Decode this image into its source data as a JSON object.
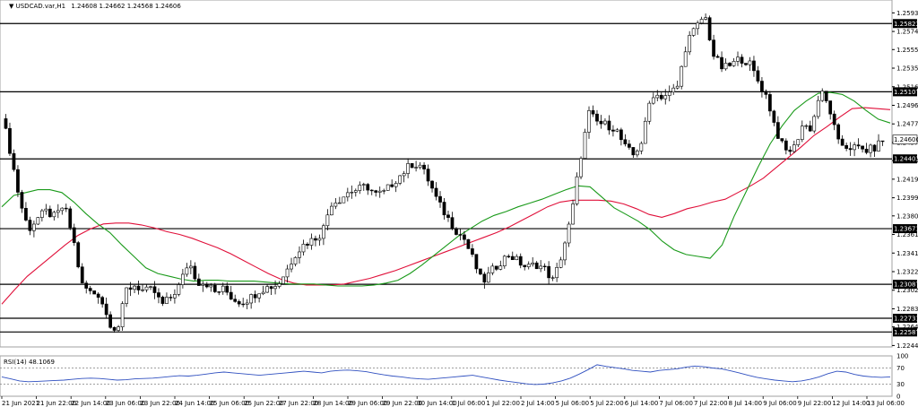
{
  "chart_header": {
    "symbol_timeframe": "USDCAD.var,H1",
    "ohlc": "1.24608 1.24662 1.24568 1.24606",
    "rsi_label": "RSI(14) 48.1069"
  },
  "colors": {
    "background": "#ffffff",
    "candle": "#000000",
    "ma_fast": "#1a9a1a",
    "ma_slow": "#e0103a",
    "rsi_line": "#3050c0",
    "level_line": "#000000"
  },
  "chart_data": [
    {
      "type": "candlestick",
      "title": "",
      "ylim": [
        1.2243,
        1.2607
      ],
      "y_ticks": [
        "1.25935",
        "1.25740",
        "1.25550",
        "1.25355",
        "1.25160",
        "1.24965",
        "1.24770",
        "1.24575",
        "1.24385",
        "1.24190",
        "1.23995",
        "1.23805",
        "1.23610",
        "1.23415",
        "1.23220",
        "1.23025",
        "1.22830",
        "1.22640",
        "1.22445"
      ],
      "x_ticks": [
        "21 Jun 2021",
        "21 Jun 22:00",
        "22 Jun 14:00",
        "23 Jun 06:00",
        "23 Jun 22:00",
        "24 Jun 14:00",
        "25 Jun 06:00",
        "25 Jun 22:00",
        "27 Jun 22:00",
        "28 Jun 14:00",
        "29 Jun 06:00",
        "29 Jun 22:00",
        "30 Jun 14:00",
        "1 Jul 06:00",
        "1 Jul 22:00",
        "2 Jul 14:00",
        "5 Jul 06:00",
        "5 Jul 22:00",
        "6 Jul 14:00",
        "7 Jul 06:00",
        "7 Jul 22:00",
        "8 Jul 14:00",
        "9 Jul 06:00",
        "9 Jul 22:00",
        "12 Jul 14:00",
        "13 Jul 06:00"
      ],
      "price_path": [
        1.2487,
        1.2446,
        1.2397,
        1.2366,
        1.2378,
        1.2385,
        1.2379,
        1.2392,
        1.2358,
        1.2308,
        1.23,
        1.2298,
        1.227,
        1.226,
        1.2303,
        1.2308,
        1.2301,
        1.2303,
        1.2287,
        1.2295,
        1.2308,
        1.2333,
        1.2311,
        1.231,
        1.23,
        1.2304,
        1.2293,
        1.229,
        1.2295,
        1.2303,
        1.2306,
        1.2308,
        1.2323,
        1.2341,
        1.2351,
        1.2356,
        1.2363,
        1.2394,
        1.2398,
        1.2406,
        1.2408,
        1.2412,
        1.2403,
        1.2405,
        1.2416,
        1.2425,
        1.2435,
        1.2434,
        1.2417,
        1.2395,
        1.238,
        1.2366,
        1.2356,
        1.2334,
        1.231,
        1.2322,
        1.2332,
        1.234,
        1.2333,
        1.2326,
        1.233,
        1.2325,
        1.2312,
        1.2342,
        1.2379,
        1.244,
        1.2488,
        1.2478,
        1.2476,
        1.2472,
        1.2453,
        1.2444,
        1.246,
        1.2509,
        1.2506,
        1.2508,
        1.2517,
        1.2564,
        1.2577,
        1.2592,
        1.2549,
        1.2535,
        1.2539,
        1.2546,
        1.2541,
        1.2522,
        1.2505,
        1.2471,
        1.2448,
        1.2451,
        1.2476,
        1.2472,
        1.2512,
        1.2494,
        1.2457,
        1.2453,
        1.2452,
        1.2449,
        1.2451,
        1.246
      ],
      "ma_fast_path": [
        1.239,
        1.2402,
        1.2405,
        1.2408,
        1.2408,
        1.2405,
        1.2395,
        1.2383,
        1.2372,
        1.2363,
        1.235,
        1.2338,
        1.2326,
        1.232,
        1.2317,
        1.2314,
        1.2312,
        1.2313,
        1.2313,
        1.2312,
        1.2312,
        1.2312,
        1.2311,
        1.231,
        1.2309,
        1.2309,
        1.2309,
        1.2308,
        1.2307,
        1.2307,
        1.2307,
        1.2308,
        1.231,
        1.2313,
        1.232,
        1.2329,
        1.2339,
        1.2349,
        1.2359,
        1.2367,
        1.2375,
        1.2381,
        1.2385,
        1.239,
        1.2394,
        1.2398,
        1.2403,
        1.2408,
        1.2412,
        1.2411,
        1.24,
        1.2389,
        1.2382,
        1.2375,
        1.2366,
        1.2354,
        1.2345,
        1.234,
        1.2338,
        1.2336,
        1.235,
        1.238,
        1.2406,
        1.2432,
        1.2456,
        1.2475,
        1.2491,
        1.2501,
        1.2509,
        1.251,
        1.2508,
        1.2501,
        1.2491,
        1.2482,
        1.2478
      ],
      "ma_slow_path": [
        1.2288,
        1.2303,
        1.2317,
        1.2328,
        1.2339,
        1.235,
        1.236,
        1.2367,
        1.2372,
        1.2373,
        1.2373,
        1.2371,
        1.2368,
        1.2364,
        1.2361,
        1.2357,
        1.2352,
        1.2347,
        1.2341,
        1.2334,
        1.2327,
        1.232,
        1.2314,
        1.231,
        1.2308,
        1.2308,
        1.2308,
        1.2309,
        1.2312,
        1.2315,
        1.2319,
        1.2323,
        1.2328,
        1.2333,
        1.2338,
        1.2343,
        1.2348,
        1.2353,
        1.2358,
        1.2363,
        1.2369,
        1.2376,
        1.2383,
        1.239,
        1.2395,
        1.2397,
        1.2397,
        1.2397,
        1.2396,
        1.2393,
        1.2388,
        1.2382,
        1.2379,
        1.2383,
        1.2388,
        1.2391,
        1.2395,
        1.2398,
        1.2405,
        1.2412,
        1.242,
        1.2431,
        1.2442,
        1.2453,
        1.2465,
        1.2474,
        1.2484,
        1.2493,
        1.2494,
        1.2493,
        1.2492
      ],
      "horizontal_levels": [
        1.25823,
        1.25107,
        1.24403,
        1.23671,
        1.23087,
        1.22731,
        1.22587
      ],
      "level_labels": [
        "1.25823",
        "1.25107",
        "1.24403",
        "1.23671",
        "1.23087",
        "1.22731",
        "1.22587"
      ],
      "current_price": 1.24606,
      "current_price_label": "1.24606",
      "grid": false
    },
    {
      "type": "line",
      "title": "RSI(14)",
      "ylim": [
        0,
        100
      ],
      "y_ticks": [
        "100",
        "70",
        "30",
        "0"
      ],
      "reference_lines": [
        70,
        30
      ],
      "values": [
        48,
        43,
        38,
        36,
        37,
        38,
        39,
        40,
        42,
        44,
        45,
        44,
        42,
        40,
        41,
        43,
        44,
        45,
        47,
        49,
        51,
        50,
        52,
        55,
        58,
        60,
        58,
        56,
        54,
        52,
        54,
        56,
        58,
        60,
        62,
        60,
        58,
        62,
        64,
        65,
        63,
        61,
        57,
        53,
        50,
        48,
        45,
        43,
        42,
        44,
        46,
        48,
        50,
        52,
        48,
        44,
        40,
        37,
        34,
        31,
        29,
        30,
        33,
        38,
        45,
        55,
        66,
        78,
        74,
        71,
        68,
        64,
        62,
        60,
        64,
        66,
        68,
        72,
        75,
        73,
        70,
        68,
        63,
        58,
        52,
        47,
        43,
        40,
        38,
        36,
        38,
        42,
        48,
        56,
        62,
        60,
        54,
        50,
        48,
        47,
        48
      ]
    }
  ]
}
